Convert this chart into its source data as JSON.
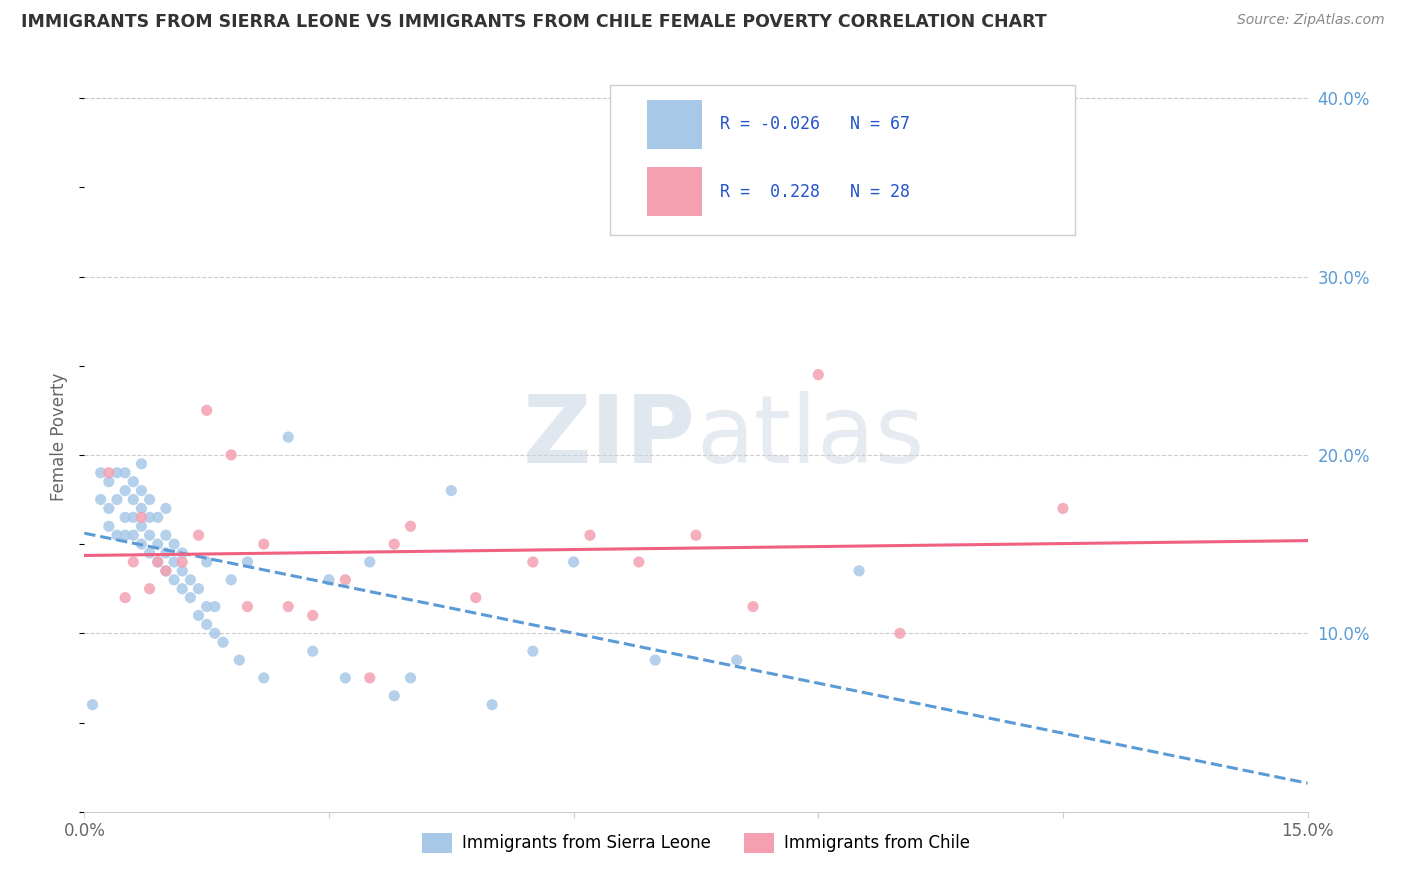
{
  "title": "IMMIGRANTS FROM SIERRA LEONE VS IMMIGRANTS FROM CHILE FEMALE POVERTY CORRELATION CHART",
  "source": "Source: ZipAtlas.com",
  "ylabel_label": "Female Poverty",
  "x_min": 0.0,
  "x_max": 0.15,
  "y_min": 0.0,
  "y_max": 0.42,
  "sierra_leone_color": "#a8c8e8",
  "chile_color": "#f4a0b0",
  "sierra_leone_line_color": "#5b9bd5",
  "chile_line_color": "#f06080",
  "R_sierra_leone": -0.026,
  "N_sierra_leone": 67,
  "R_chile": 0.228,
  "N_chile": 28,
  "legend_label_1": "Immigrants from Sierra Leone",
  "legend_label_2": "Immigrants from Chile",
  "sierra_leone_x": [
    0.001,
    0.002,
    0.002,
    0.003,
    0.003,
    0.003,
    0.004,
    0.004,
    0.004,
    0.005,
    0.005,
    0.005,
    0.005,
    0.006,
    0.006,
    0.006,
    0.006,
    0.007,
    0.007,
    0.007,
    0.007,
    0.007,
    0.008,
    0.008,
    0.008,
    0.008,
    0.009,
    0.009,
    0.009,
    0.01,
    0.01,
    0.01,
    0.01,
    0.011,
    0.011,
    0.011,
    0.012,
    0.012,
    0.012,
    0.013,
    0.013,
    0.014,
    0.014,
    0.015,
    0.015,
    0.015,
    0.016,
    0.016,
    0.017,
    0.018,
    0.019,
    0.02,
    0.022,
    0.025,
    0.028,
    0.03,
    0.032,
    0.035,
    0.038,
    0.04,
    0.045,
    0.05,
    0.055,
    0.06,
    0.07,
    0.08,
    0.095
  ],
  "sierra_leone_y": [
    0.06,
    0.175,
    0.19,
    0.16,
    0.17,
    0.185,
    0.155,
    0.175,
    0.19,
    0.155,
    0.165,
    0.18,
    0.19,
    0.155,
    0.165,
    0.175,
    0.185,
    0.15,
    0.16,
    0.17,
    0.18,
    0.195,
    0.145,
    0.155,
    0.165,
    0.175,
    0.14,
    0.15,
    0.165,
    0.135,
    0.145,
    0.155,
    0.17,
    0.13,
    0.14,
    0.15,
    0.125,
    0.135,
    0.145,
    0.12,
    0.13,
    0.11,
    0.125,
    0.105,
    0.115,
    0.14,
    0.1,
    0.115,
    0.095,
    0.13,
    0.085,
    0.14,
    0.075,
    0.21,
    0.09,
    0.13,
    0.075,
    0.14,
    0.065,
    0.075,
    0.18,
    0.06,
    0.09,
    0.14,
    0.085,
    0.085,
    0.135
  ],
  "chile_x": [
    0.003,
    0.005,
    0.006,
    0.007,
    0.008,
    0.009,
    0.01,
    0.012,
    0.014,
    0.015,
    0.018,
    0.02,
    0.022,
    0.025,
    0.028,
    0.032,
    0.035,
    0.038,
    0.04,
    0.048,
    0.055,
    0.062,
    0.068,
    0.075,
    0.082,
    0.09,
    0.1,
    0.12
  ],
  "chile_y": [
    0.19,
    0.12,
    0.14,
    0.165,
    0.125,
    0.14,
    0.135,
    0.14,
    0.155,
    0.225,
    0.2,
    0.115,
    0.15,
    0.115,
    0.11,
    0.13,
    0.075,
    0.15,
    0.16,
    0.12,
    0.14,
    0.155,
    0.14,
    0.155,
    0.115,
    0.245,
    0.1,
    0.17
  ]
}
